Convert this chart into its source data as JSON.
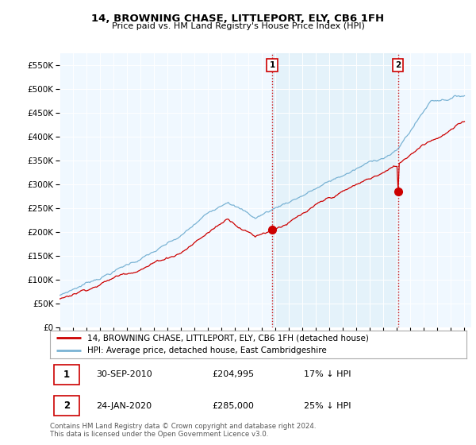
{
  "title": "14, BROWNING CHASE, LITTLEPORT, ELY, CB6 1FH",
  "subtitle": "Price paid vs. HM Land Registry's House Price Index (HPI)",
  "ylabel_ticks": [
    "£0",
    "£50K",
    "£100K",
    "£150K",
    "£200K",
    "£250K",
    "£300K",
    "£350K",
    "£400K",
    "£450K",
    "£500K",
    "£550K"
  ],
  "ytick_values": [
    0,
    50000,
    100000,
    150000,
    200000,
    250000,
    300000,
    350000,
    400000,
    450000,
    500000,
    550000
  ],
  "ylim": [
    0,
    575000
  ],
  "hpi_color": "#7ab3d4",
  "price_color": "#cc0000",
  "vline_color": "#cc0000",
  "background_color": "#ddeef8",
  "shaded_color": "#ddeef8",
  "marker1_x": 2010.75,
  "marker1_y": 204995,
  "marker1_label": "1",
  "marker2_x": 2020.07,
  "marker2_y": 285000,
  "marker2_label": "2",
  "legend_line1": "14, BROWNING CHASE, LITTLEPORT, ELY, CB6 1FH (detached house)",
  "legend_line2": "HPI: Average price, detached house, East Cambridgeshire",
  "annot1_date": "30-SEP-2010",
  "annot1_price": "£204,995",
  "annot1_hpi": "17% ↓ HPI",
  "annot2_date": "24-JAN-2020",
  "annot2_price": "£285,000",
  "annot2_hpi": "25% ↓ HPI",
  "footer": "Contains HM Land Registry data © Crown copyright and database right 2024.\nThis data is licensed under the Open Government Licence v3.0.",
  "xmin": 1995,
  "xmax": 2025
}
